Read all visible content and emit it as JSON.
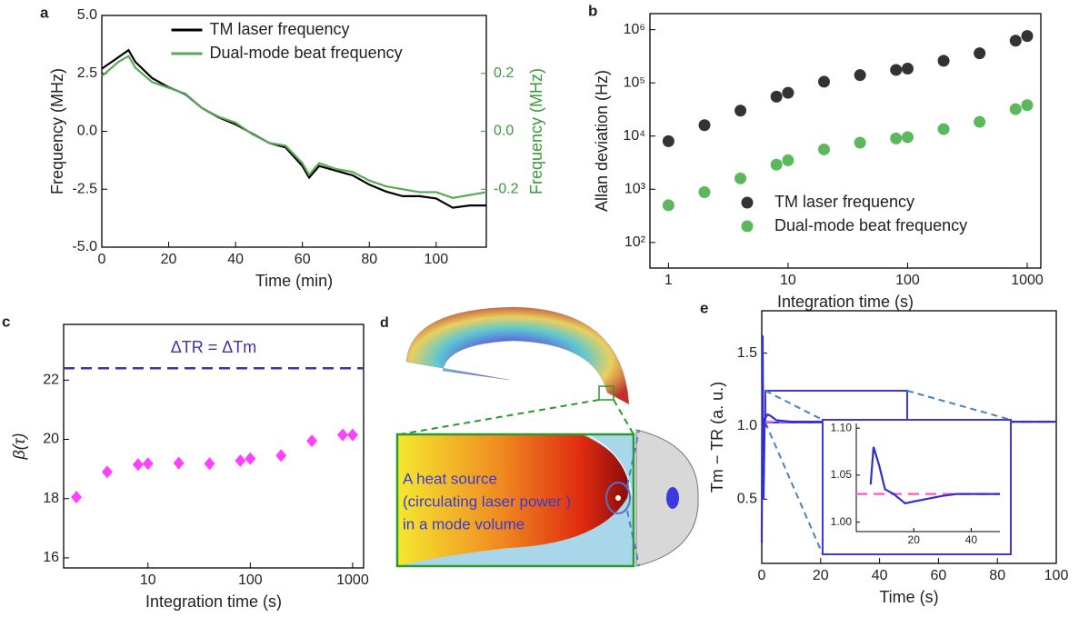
{
  "chart_data": [
    {
      "type": "line",
      "panel_label": "a",
      "xlabel": "Time (min)",
      "ylabel": "Frequency (MHz)",
      "y2label": "Frequency (MHz)",
      "y2color": "#3a9a3a",
      "x": [
        0,
        5,
        8,
        10,
        15,
        20,
        25,
        30,
        35,
        40,
        45,
        50,
        55,
        60,
        62,
        65,
        70,
        75,
        80,
        85,
        90,
        95,
        100,
        105,
        110,
        115
      ],
      "series": [
        {
          "name": "TM laser frequency",
          "color": "#000000",
          "values": [
            2.7,
            3.2,
            3.5,
            3.0,
            2.3,
            1.9,
            1.6,
            1.0,
            0.6,
            0.3,
            -0.1,
            -0.5,
            -0.7,
            -1.5,
            -2.0,
            -1.5,
            -1.7,
            -1.9,
            -2.3,
            -2.6,
            -2.8,
            -2.8,
            -2.9,
            -3.3,
            -3.2,
            -3.2
          ]
        },
        {
          "name": "Dual-mode beat frequency",
          "color": "#5aa95a",
          "axis": "y2",
          "values": [
            0.19,
            0.24,
            0.26,
            0.22,
            0.17,
            0.15,
            0.13,
            0.08,
            0.05,
            0.03,
            -0.01,
            -0.04,
            -0.05,
            -0.11,
            -0.15,
            -0.11,
            -0.13,
            -0.14,
            -0.17,
            -0.19,
            -0.2,
            -0.21,
            -0.21,
            -0.23,
            -0.22,
            -0.21
          ]
        }
      ],
      "xlim": [
        0,
        115
      ],
      "xticks": [
        0,
        20,
        40,
        60,
        80,
        100
      ],
      "ylim": [
        -5,
        5
      ],
      "yticks": [
        {
          "value": -5,
          "label": "-5.0"
        },
        {
          "value": -2.5,
          "label": "-2.5"
        },
        {
          "value": 0,
          "label": "0.0"
        },
        {
          "value": 2.5,
          "label": "2.5"
        },
        {
          "value": 5,
          "label": "5.0"
        }
      ],
      "y2lim": [
        -0.4,
        0.4
      ],
      "y2ticks": [
        -0.2,
        {
          "value": 0,
          "label": "0.0"
        },
        0.2
      ],
      "legend": "upper center"
    },
    {
      "type": "scatter",
      "panel_label": "b",
      "xlabel": "Integration time (s)",
      "ylabel": "Allan deviation (Hz)",
      "xlog": true,
      "ylog": true,
      "x": [
        1,
        2,
        4,
        8,
        10,
        20,
        40,
        80,
        100,
        200,
        400,
        800,
        1000
      ],
      "series": [
        {
          "name": "TM laser frequency",
          "color": "#333333",
          "values": [
            8000,
            16000,
            30000,
            55000,
            65000,
            105000,
            140000,
            175000,
            185000,
            260000,
            360000,
            620000,
            760000
          ]
        },
        {
          "name": "Dual-mode beat frequency",
          "color": "#5cb85c",
          "values": [
            500,
            880,
            1600,
            2900,
            3500,
            5600,
            7500,
            9000,
            9500,
            13500,
            18500,
            32000,
            38000
          ]
        }
      ],
      "xlim": [
        0.7,
        1300
      ],
      "xticks": [
        1,
        10,
        100,
        1000
      ],
      "ylim": [
        33,
        2000000
      ],
      "yticks": [
        {
          "value": 100,
          "label": "10²"
        },
        {
          "value": 1000,
          "label": "10³"
        },
        {
          "value": 10000,
          "label": "10⁴"
        },
        {
          "value": 100000,
          "label": "10⁵"
        },
        {
          "value": 1000000,
          "label": "10⁶"
        }
      ],
      "legend": "lower right"
    },
    {
      "type": "scatter",
      "panel_label": "c",
      "xlabel": "Integration time (s)",
      "ylabel": "β(τ)",
      "xlog": true,
      "marker": "diamond",
      "x": [
        2,
        4,
        8,
        10,
        20,
        40,
        80,
        100,
        200,
        400,
        800,
        1000
      ],
      "series": [
        {
          "color": "#ff40ff",
          "values": [
            18.05,
            18.9,
            19.15,
            19.18,
            19.2,
            19.18,
            19.28,
            19.35,
            19.45,
            19.95,
            20.15,
            20.15
          ]
        }
      ],
      "xlim": [
        1.5,
        1280
      ],
      "xticks": [
        10,
        100,
        1000
      ],
      "ylim": [
        15.66,
        23.88
      ],
      "yticks": [
        16,
        18,
        20,
        22
      ],
      "hline": 22.4,
      "hline_color": "#3b35a8",
      "annotation": "ΔTR = ΔTm"
    },
    {
      "type": "line",
      "panel_label": "e",
      "xlabel": "Time (s)",
      "ylabel": "Tm − TR (a. u.)",
      "x": [
        0,
        0.3,
        0.6,
        1,
        2,
        3,
        5,
        10,
        20,
        50,
        100
      ],
      "series": [
        {
          "color": "#3030d0",
          "values": [
            0.2,
            1.62,
            0.5,
            1.05,
            1.08,
            1.07,
            1.04,
            1.03,
            1.03,
            1.03,
            1.03
          ]
        }
      ],
      "xlim": [
        0,
        100
      ],
      "xticks": [
        0,
        20,
        40,
        60,
        80,
        100
      ],
      "ylim": [
        0.06,
        1.79
      ],
      "yticks": [
        0.5,
        {
          "value": 1,
          "label": "1.0"
        },
        1.5
      ],
      "hline": 1.03,
      "hline_color": "#ff66cc"
    },
    {
      "type": "line",
      "x": [
        5,
        6,
        8,
        10,
        13,
        17,
        20,
        25,
        30,
        35,
        40,
        45,
        50
      ],
      "series": [
        {
          "color": "#3030d0",
          "values": [
            1.04,
            1.08,
            1.06,
            1.035,
            1.03,
            1.02,
            1.022,
            1.025,
            1.028,
            1.03,
            1.03,
            1.03,
            1.03
          ]
        }
      ],
      "xlim": [
        0,
        50
      ],
      "xticks": [
        20,
        40
      ],
      "ylim": [
        0.99,
        1.105
      ],
      "yticks": [
        {
          "value": 1,
          "label": "1.00"
        },
        1.05,
        {
          "value": 1.1,
          "label": "1.10"
        }
      ],
      "hline": 1.03,
      "hline_color": "#ff66cc"
    }
  ],
  "panel_d": {
    "label": "d",
    "caption": [
      "A heat source",
      "(circulating laser power )",
      "in a mode volume"
    ]
  }
}
